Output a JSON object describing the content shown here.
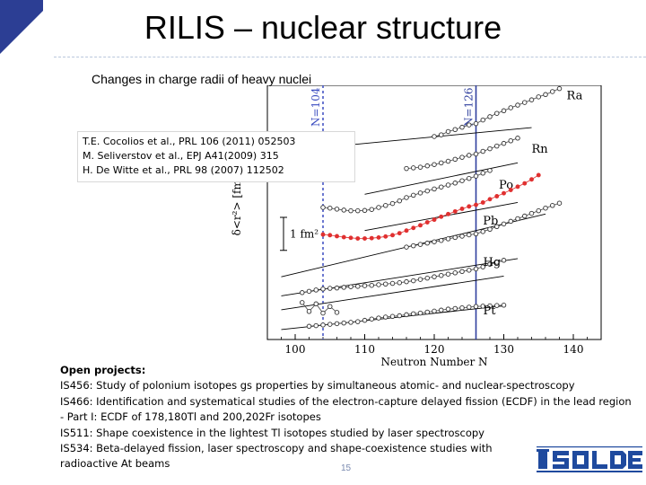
{
  "slide": {
    "title": "RILIS – nuclear structure",
    "subtitle": "Changes in charge radii of heavy nuclei",
    "page_number": "15",
    "accent_color": "#2c3e94"
  },
  "references": [
    "T.E. Cocolios et al., PRL 106 (2011) 052503",
    "M. Seliverstov et al., EPJ A41(2009) 315",
    "H. De Witte et al., PRL 98 (2007) 112502"
  ],
  "projects": {
    "heading": "Open projects:",
    "items": [
      "IS456: Study of polonium isotopes gs properties by simultaneous atomic- and nuclear-spectroscopy",
      "IS466: Identification and systematical studies of the electron-capture delayed fission (ECDF) in the lead region - Part I: ECDF of 178,180Tl and 200,202Fr isotopes",
      "IS511: Shape coexistence in the lightest Tl isotopes studied by laser spectroscopy",
      "IS534: Beta-delayed fission, laser spectroscopy and shape-coexistence studies with radioactive At beams"
    ]
  },
  "logo": {
    "text": "ISOLDE"
  },
  "chart_data": {
    "type": "scatter",
    "xlabel": "Neutron Number N",
    "ylabel": "δ<r²> [fm²]",
    "xlim": [
      96,
      144
    ],
    "xticks": [
      100,
      110,
      120,
      130,
      140
    ],
    "scale_label": "1 fm²",
    "reference_lines": [
      {
        "label": "N=104",
        "x": 104,
        "style": "dashed"
      },
      {
        "label": "N=126",
        "x": 126,
        "style": "solid"
      }
    ],
    "series": [
      {
        "name": "Ra",
        "x": [
          120,
          121,
          122,
          123,
          124,
          125,
          126,
          127,
          128,
          129,
          130,
          131,
          132,
          133,
          134,
          135,
          136,
          137,
          138
        ],
        "values": [
          5.45,
          5.5,
          5.6,
          5.66,
          5.73,
          5.8,
          5.84,
          5.95,
          6.05,
          6.15,
          6.23,
          6.32,
          6.4,
          6.48,
          6.56,
          6.65,
          6.72,
          6.81,
          6.9
        ]
      },
      {
        "name": "Rn",
        "x": [
          116,
          117,
          118,
          119,
          120,
          121,
          122,
          123,
          124,
          125,
          126,
          127,
          128,
          129,
          130,
          131,
          132
        ],
        "values": [
          4.48,
          4.5,
          4.52,
          4.56,
          4.6,
          4.65,
          4.7,
          4.76,
          4.82,
          4.88,
          4.92,
          5.0,
          5.08,
          5.16,
          5.24,
          5.32,
          5.4
        ]
      },
      {
        "name": "Po",
        "x": [
          104,
          105,
          106,
          107,
          108,
          109,
          110,
          111,
          112,
          113,
          114,
          115,
          116,
          117,
          118,
          119,
          120,
          121,
          122,
          123,
          124,
          125,
          126,
          127,
          128
        ],
        "values": [
          3.3,
          3.28,
          3.25,
          3.22,
          3.2,
          3.2,
          3.21,
          3.24,
          3.3,
          3.36,
          3.42,
          3.5,
          3.6,
          3.67,
          3.74,
          3.8,
          3.86,
          3.92,
          3.98,
          4.04,
          4.11,
          4.18,
          4.25,
          4.34,
          4.42
        ]
      },
      {
        "name": "Po",
        "x": [
          104,
          105,
          106,
          107,
          108,
          109,
          110,
          111,
          112,
          113,
          114,
          115,
          116,
          117,
          118,
          119,
          120,
          121,
          122,
          123,
          124,
          125,
          126,
          127,
          128,
          129,
          130,
          131,
          132,
          133,
          134,
          135
        ],
        "values": [
          2.48,
          2.46,
          2.43,
          2.4,
          2.38,
          2.36,
          2.36,
          2.37,
          2.39,
          2.42,
          2.46,
          2.52,
          2.6,
          2.68,
          2.76,
          2.85,
          2.93,
          3.02,
          3.1,
          3.18,
          3.26,
          3.33,
          3.38,
          3.45,
          3.55,
          3.64,
          3.73,
          3.83,
          3.93,
          4.03,
          4.15,
          4.28
        ]
      },
      {
        "name": "Pb",
        "x": [
          116,
          117,
          118,
          119,
          120,
          121,
          122,
          123,
          124,
          125,
          126,
          127,
          128,
          129,
          130,
          131,
          132,
          133,
          134,
          135,
          136,
          137,
          138
        ],
        "values": [
          2.1,
          2.14,
          2.18,
          2.22,
          2.26,
          2.3,
          2.35,
          2.39,
          2.43,
          2.47,
          2.5,
          2.57,
          2.64,
          2.72,
          2.8,
          2.88,
          2.96,
          3.04,
          3.12,
          3.2,
          3.28,
          3.36,
          3.43
        ]
      },
      {
        "name": "Hg",
        "x": [
          101,
          102,
          103,
          104,
          105,
          106,
          107,
          108,
          109,
          110,
          111,
          112,
          113,
          114,
          115,
          116,
          117,
          118,
          119,
          120,
          121,
          122,
          123,
          124,
          125,
          126,
          127,
          128,
          129,
          130
        ],
        "values": [
          0.72,
          0.76,
          0.8,
          0.83,
          0.85,
          0.86,
          0.88,
          0.9,
          0.91,
          0.93,
          0.94,
          0.96,
          0.98,
          1.0,
          1.02,
          1.05,
          1.08,
          1.12,
          1.16,
          1.2,
          1.24,
          1.28,
          1.32,
          1.36,
          1.4,
          1.44,
          1.5,
          1.58,
          1.64,
          1.7
        ]
      },
      {
        "name": "Hg",
        "x": [
          101,
          102,
          103,
          104,
          105,
          106
        ],
        "values": [
          0.42,
          0.15,
          0.38,
          0.1,
          0.3,
          0.12
        ]
      },
      {
        "name": "Pt",
        "x": [
          102,
          103,
          104,
          105,
          106,
          107,
          108,
          109,
          110,
          111,
          112,
          113,
          114,
          115,
          116,
          117,
          118,
          119,
          120,
          121,
          122,
          123,
          124,
          125,
          126,
          127,
          128,
          129,
          130
        ],
        "values": [
          -0.3,
          -0.28,
          -0.26,
          -0.24,
          -0.22,
          -0.2,
          -0.18,
          -0.16,
          -0.12,
          -0.08,
          -0.05,
          -0.02,
          0.0,
          0.02,
          0.05,
          0.08,
          0.1,
          0.13,
          0.16,
          0.19,
          0.22,
          0.24,
          0.26,
          0.28,
          0.3,
          0.31,
          0.32,
          0.33,
          0.34
        ]
      }
    ],
    "guide_lines": [
      {
        "x": [
          108,
          134
        ],
        "values": [
          5.2,
          5.72
        ]
      },
      {
        "x": [
          110,
          132
        ],
        "values": [
          3.7,
          4.65
        ]
      },
      {
        "x": [
          110,
          132
        ],
        "values": [
          2.6,
          3.45
        ]
      },
      {
        "x": [
          98,
          136
        ],
        "values": [
          1.2,
          3.1
        ]
      },
      {
        "x": [
          98,
          132
        ],
        "values": [
          0.62,
          1.75
        ]
      },
      {
        "x": [
          98,
          130
        ],
        "values": [
          0.2,
          1.22
        ]
      },
      {
        "x": [
          98,
          130
        ],
        "values": [
          -0.4,
          0.32
        ]
      }
    ],
    "colors": {
      "frame": "#000000",
      "line104": "#3b4cc0",
      "line126": "#2f3f9e",
      "highlight": "#e03030",
      "point": "#333333"
    }
  }
}
